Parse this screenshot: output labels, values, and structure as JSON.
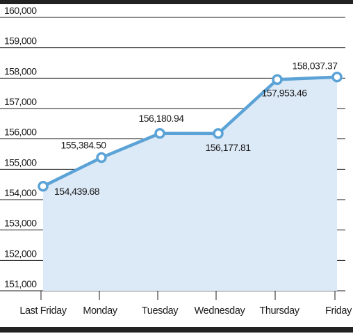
{
  "chart_data": {
    "type": "area",
    "title": "",
    "xlabel": "",
    "ylabel": "",
    "categories": [
      "Last Friday",
      "Monday",
      "Tuesday",
      "Wednesday",
      "Thursday",
      "Friday"
    ],
    "series": [
      {
        "values": [
          154439.68,
          155384.5,
          156180.94,
          156177.81,
          157953.46,
          158037.37
        ],
        "data_labels": [
          "154,439.68",
          "155,384.50",
          "156,180.94",
          "156,177.81",
          "157,953.46",
          "158,037.37"
        ]
      }
    ],
    "ylim": [
      151000,
      160000
    ],
    "yticks": [
      151000,
      152000,
      153000,
      154000,
      155000,
      156000,
      157000,
      158000,
      159000,
      160000
    ],
    "ytick_labels": [
      "151,000",
      "152,000",
      "153,000",
      "154,000",
      "155,000",
      "156,000",
      "157,000",
      "158,000",
      "159,000",
      "160,000"
    ],
    "grid": true,
    "legend": "none",
    "colors": {
      "line": "#5ba3d6",
      "area_fill": "#dce9f7",
      "marker_fill": "#ffffff",
      "gridline": "#1a1a1a",
      "frame_bar": "#222222"
    }
  }
}
